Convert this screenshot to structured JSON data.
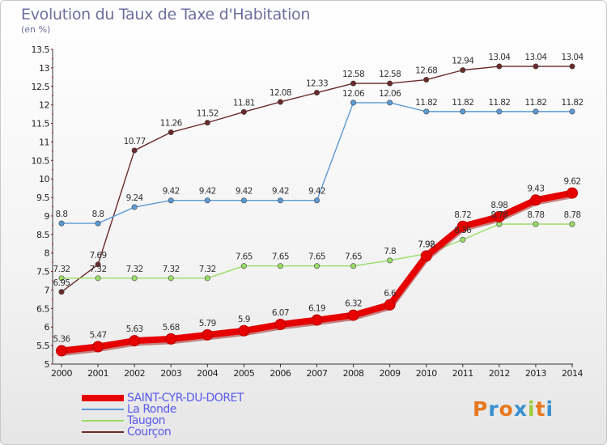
{
  "header": {
    "title": "Evolution du Taux de Taxe d'Habitation",
    "subtitle": "(en %)"
  },
  "chart_data": {
    "type": "line",
    "title": "Evolution du Taux de Taxe d'Habitation",
    "ylabel": "(en %)",
    "xlabel": "",
    "x": [
      2000,
      2001,
      2002,
      2003,
      2004,
      2005,
      2006,
      2007,
      2008,
      2009,
      2010,
      2011,
      2012,
      2013,
      2014
    ],
    "ylim": [
      5,
      13.5
    ],
    "yticks": [
      "5",
      "5.5",
      "6",
      "6.5",
      "7",
      "7.5",
      "8",
      "8.5",
      "9",
      "9.5",
      "10",
      "10.5",
      "11",
      "11.5",
      "12",
      "12.5",
      "13",
      "13.5"
    ],
    "grid": false,
    "legend_position": "bottom-left",
    "series": [
      {
        "name": "SAINT-CYR-DU-DORET",
        "color": "#e60000",
        "values": [
          5.36,
          5.47,
          5.63,
          5.68,
          5.79,
          5.9,
          6.07,
          6.19,
          6.32,
          6.6,
          7.92,
          8.72,
          8.98,
          9.43,
          9.62
        ],
        "labels": [
          "5.36",
          "5.47",
          "5.63",
          "5.68",
          "5.79",
          "5.9",
          "6.07",
          "6.19",
          "6.32",
          "6.6",
          "7.92",
          "8.72",
          "8.98",
          "9.43",
          "9.62"
        ]
      },
      {
        "name": "La Ronde",
        "color": "#5b9bd5",
        "values": [
          8.8,
          8.8,
          9.24,
          9.42,
          9.42,
          9.42,
          9.42,
          9.42,
          12.06,
          12.06,
          11.82,
          11.82,
          11.82,
          11.82,
          11.82
        ],
        "labels": [
          "8.8",
          "8.8",
          "9.24",
          "9.42",
          "9.42",
          "9.42",
          "9.42",
          "9.42",
          "12.06",
          "12.06",
          "11.82",
          "11.82",
          "11.82",
          "11.82",
          "11.82"
        ]
      },
      {
        "name": "Taugon",
        "color": "#99dd66",
        "values": [
          7.32,
          7.32,
          7.32,
          7.32,
          7.32,
          7.65,
          7.65,
          7.65,
          7.65,
          7.8,
          7.98,
          8.36,
          8.78,
          8.78,
          8.78
        ],
        "labels": [
          "7.32",
          "7.32",
          "7.32",
          "7.32",
          "7.32",
          "7.65",
          "7.65",
          "7.65",
          "7.65",
          "7.8",
          "7.98",
          "8.36",
          "8.78",
          "8.78",
          "8.78"
        ]
      },
      {
        "name": "Courçon",
        "color": "#6b2a2a",
        "values": [
          6.95,
          7.69,
          10.77,
          11.26,
          11.52,
          11.81,
          12.08,
          12.33,
          12.58,
          12.58,
          12.68,
          12.94,
          13.04,
          13.04,
          13.04
        ],
        "labels": [
          "6.95",
          "7.69",
          "10.77",
          "11.26",
          "11.52",
          "11.81",
          "12.08",
          "12.33",
          "12.58",
          "12.58",
          "12.68",
          "12.94",
          "13.04",
          "13.04",
          "13.04"
        ]
      }
    ]
  },
  "legend": {
    "items": [
      {
        "label": "SAINT-CYR-DU-DORET",
        "color": "#e60000"
      },
      {
        "label": "La Ronde",
        "color": "#5b9bd5"
      },
      {
        "label": "Taugon",
        "color": "#99dd66"
      },
      {
        "label": "Courçon",
        "color": "#6b2a2a"
      }
    ]
  },
  "logo": {
    "text": "Proxiti",
    "colors": [
      "#e8781e",
      "#3a8fd0",
      "#e8781e",
      "#3a8fd0",
      "#9ccc3a",
      "#e8781e",
      "#3a8fd0"
    ]
  }
}
